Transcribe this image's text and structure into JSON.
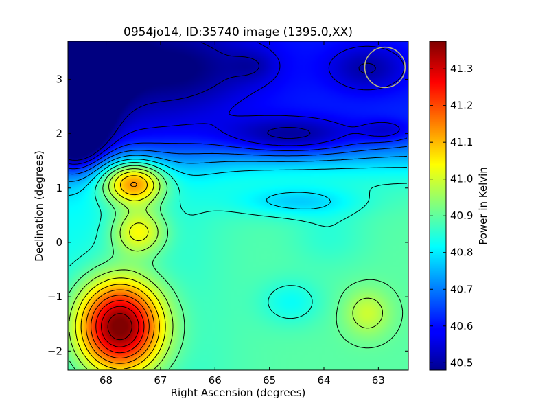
{
  "chart_data": {
    "type": "heatmap",
    "title": "0954jo14, ID:35740 image (1395.0,XX)",
    "xlabel": "Right Ascension (degrees)",
    "ylabel": "Declination (degrees)",
    "xlim": [
      68.7,
      62.45
    ],
    "ylim": [
      -2.35,
      3.7
    ],
    "xticks": [
      {
        "value": 68,
        "label": "68"
      },
      {
        "value": 67,
        "label": "67"
      },
      {
        "value": 66,
        "label": "66"
      },
      {
        "value": 65,
        "label": "65"
      },
      {
        "value": 64,
        "label": "64"
      },
      {
        "value": 63,
        "label": "63"
      }
    ],
    "yticks": [
      {
        "value": 3,
        "label": "3"
      },
      {
        "value": 2,
        "label": "2"
      },
      {
        "value": 1,
        "label": "1"
      },
      {
        "value": 0,
        "label": "0"
      },
      {
        "value": -1,
        "label": "−1"
      },
      {
        "value": -2,
        "label": "−2"
      }
    ],
    "colorbar": {
      "label": "Power in Kelvin",
      "vmin": 40.48,
      "vmax": 41.375,
      "ticks": [
        {
          "value": 40.5,
          "label": "40.5"
        },
        {
          "value": 40.6,
          "label": "40.6"
        },
        {
          "value": 40.7,
          "label": "40.7"
        },
        {
          "value": 40.8,
          "label": "40.8"
        },
        {
          "value": 40.9,
          "label": "40.9"
        },
        {
          "value": 41.0,
          "label": "41.0"
        },
        {
          "value": 41.1,
          "label": "41.1"
        },
        {
          "value": 41.2,
          "label": "41.2"
        },
        {
          "value": 41.3,
          "label": "41.3"
        }
      ]
    },
    "field_features": [
      {
        "ra": 68.6,
        "dec": 3.4,
        "sx": 0.55,
        "sy": 0.6,
        "amp": -0.55
      },
      {
        "ra": 68.55,
        "dec": 2.2,
        "sx": 0.35,
        "sy": 0.5,
        "amp": -0.45
      },
      {
        "ra": 66.5,
        "dec": 3.2,
        "sx": 1.0,
        "sy": 0.5,
        "amp": -0.1
      },
      {
        "ra": 64.6,
        "dec": 1.95,
        "sx": 0.9,
        "sy": 0.25,
        "amp": -0.15
      },
      {
        "ra": 62.85,
        "dec": 2.05,
        "sx": 0.35,
        "sy": 0.15,
        "amp": -0.08
      },
      {
        "ra": 63.2,
        "dec": 3.2,
        "sx": 0.5,
        "sy": 0.3,
        "amp": -0.1
      },
      {
        "ra": 65.3,
        "dec": 3.25,
        "sx": 0.3,
        "sy": 0.2,
        "amp": -0.05
      },
      {
        "ra": 67.75,
        "dec": -1.55,
        "sx": 0.55,
        "sy": 0.6,
        "amp": 0.56
      },
      {
        "ra": 67.5,
        "dec": 1.1,
        "sx": 0.4,
        "sy": 0.28,
        "amp": 0.34
      },
      {
        "ra": 67.4,
        "dec": 0.2,
        "sx": 0.35,
        "sy": 0.3,
        "amp": 0.2
      },
      {
        "ra": 63.2,
        "dec": -1.3,
        "sx": 0.3,
        "sy": 0.3,
        "amp": 0.1
      },
      {
        "ra": 64.5,
        "dec": 0.75,
        "sx": 0.8,
        "sy": 0.2,
        "amp": -0.1
      },
      {
        "ra": 64.6,
        "dec": -1.1,
        "sx": 0.4,
        "sy": 0.3,
        "amp": -0.07
      },
      {
        "ra": 63.9,
        "dec": 0.1,
        "sx": 0.5,
        "sy": 0.4,
        "amp": -0.04
      }
    ],
    "beam_circle": {
      "ra": 62.88,
      "dec": 3.22,
      "radius_deg": 0.37,
      "color": "#b9b77d"
    }
  }
}
